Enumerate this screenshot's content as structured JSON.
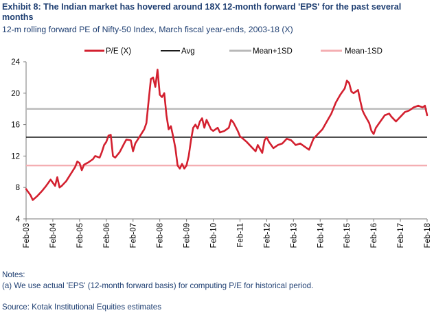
{
  "title": "Exhibit 8: The Indian market has hovered around 18X 12-month forward 'EPS' for the past several months",
  "subtitle": "12-m rolling forward PE of Nifty-50 Index, March fiscal year-ends, 2003-18 (X)",
  "notes_heading": "Notes:",
  "note_a": "(a) We use actual 'EPS' (12-month forward basis) for computing P/E for historical period.",
  "source": "Source: Kotak Institutional Equities estimates",
  "colors": {
    "pe": "#d3202f",
    "avg": "#1a1a1a",
    "mean_plus": "#b8b8b8",
    "mean_minus": "#f4aeb2",
    "text": "#1f3f72"
  },
  "chart_data": {
    "type": "line",
    "title": "12-m rolling forward PE of Nifty-50 Index, March fiscal year-ends, 2003-18 (X)",
    "legend_position": "top",
    "ylim": [
      4,
      24
    ],
    "y_ticks": [
      "4",
      "8",
      "12",
      "16",
      "20",
      "24"
    ],
    "x_ticks": [
      "Feb-03",
      "Feb-04",
      "Feb-05",
      "Feb-06",
      "Feb-07",
      "Feb-08",
      "Feb-09",
      "Feb-10",
      "Feb-11",
      "Feb-12",
      "Feb-13",
      "Feb-14",
      "Feb-15",
      "Feb-16",
      "Feb-17",
      "Feb-18"
    ],
    "x_range": [
      "2003-02",
      "2018-02"
    ],
    "grid": false,
    "series": [
      {
        "name": "P/E (X)",
        "points": [
          [
            "2003-02",
            7.8
          ],
          [
            "2003-04",
            7.0
          ],
          [
            "2003-05",
            6.4
          ],
          [
            "2003-07",
            6.9
          ],
          [
            "2003-09",
            7.5
          ],
          [
            "2003-11",
            8.2
          ],
          [
            "2004-01",
            9.0
          ],
          [
            "2004-02",
            8.6
          ],
          [
            "2004-03",
            8.2
          ],
          [
            "2004-04",
            9.3
          ],
          [
            "2004-05",
            8.0
          ],
          [
            "2004-06",
            8.2
          ],
          [
            "2004-08",
            8.8
          ],
          [
            "2004-10",
            9.7
          ],
          [
            "2004-12",
            10.6
          ],
          [
            "2005-01",
            11.3
          ],
          [
            "2005-02",
            11.1
          ],
          [
            "2005-03",
            10.2
          ],
          [
            "2005-04",
            10.9
          ],
          [
            "2005-06",
            11.2
          ],
          [
            "2005-08",
            11.6
          ],
          [
            "2005-09",
            12.0
          ],
          [
            "2005-11",
            11.8
          ],
          [
            "2005-12",
            12.5
          ],
          [
            "2006-01",
            13.4
          ],
          [
            "2006-02",
            13.8
          ],
          [
            "2006-03",
            14.6
          ],
          [
            "2006-04",
            14.7
          ],
          [
            "2006-05",
            12.0
          ],
          [
            "2006-06",
            11.8
          ],
          [
            "2006-08",
            12.5
          ],
          [
            "2006-10",
            13.6
          ],
          [
            "2006-11",
            14.1
          ],
          [
            "2007-01",
            14.0
          ],
          [
            "2007-02",
            12.6
          ],
          [
            "2007-03",
            13.6
          ],
          [
            "2007-05",
            14.5
          ],
          [
            "2007-07",
            15.4
          ],
          [
            "2007-08",
            16.2
          ],
          [
            "2007-09",
            19.0
          ],
          [
            "2007-10",
            21.8
          ],
          [
            "2007-11",
            22.0
          ],
          [
            "2007-12",
            20.8
          ],
          [
            "2008-01",
            23.0
          ],
          [
            "2008-02",
            19.8
          ],
          [
            "2008-03",
            19.5
          ],
          [
            "2008-04",
            20.0
          ],
          [
            "2008-05",
            17.2
          ],
          [
            "2008-06",
            15.4
          ],
          [
            "2008-07",
            15.8
          ],
          [
            "2008-08",
            14.5
          ],
          [
            "2008-09",
            13.0
          ],
          [
            "2008-10",
            10.8
          ],
          [
            "2008-11",
            10.4
          ],
          [
            "2008-12",
            11.0
          ],
          [
            "2009-01",
            10.4
          ],
          [
            "2009-02",
            10.8
          ],
          [
            "2009-03",
            12.0
          ],
          [
            "2009-04",
            14.0
          ],
          [
            "2009-05",
            15.6
          ],
          [
            "2009-06",
            16.0
          ],
          [
            "2009-07",
            15.5
          ],
          [
            "2009-08",
            16.4
          ],
          [
            "2009-09",
            16.8
          ],
          [
            "2009-10",
            15.6
          ],
          [
            "2009-11",
            16.6
          ],
          [
            "2010-01",
            15.4
          ],
          [
            "2010-02",
            15.2
          ],
          [
            "2010-04",
            15.6
          ],
          [
            "2010-05",
            15.0
          ],
          [
            "2010-07",
            15.2
          ],
          [
            "2010-09",
            15.6
          ],
          [
            "2010-10",
            16.6
          ],
          [
            "2010-11",
            16.3
          ],
          [
            "2011-01",
            15.2
          ],
          [
            "2011-02",
            14.5
          ],
          [
            "2011-03",
            14.3
          ],
          [
            "2011-05",
            13.8
          ],
          [
            "2011-07",
            13.2
          ],
          [
            "2011-09",
            12.6
          ],
          [
            "2011-10",
            13.4
          ],
          [
            "2011-12",
            12.4
          ],
          [
            "2012-01",
            14.0
          ],
          [
            "2012-02",
            14.4
          ],
          [
            "2012-03",
            13.8
          ],
          [
            "2012-05",
            13.0
          ],
          [
            "2012-07",
            13.4
          ],
          [
            "2012-09",
            13.6
          ],
          [
            "2012-11",
            14.2
          ],
          [
            "2013-01",
            14.0
          ],
          [
            "2013-03",
            13.4
          ],
          [
            "2013-05",
            13.6
          ],
          [
            "2013-07",
            13.2
          ],
          [
            "2013-09",
            12.8
          ],
          [
            "2013-11",
            14.2
          ],
          [
            "2014-01",
            14.8
          ],
          [
            "2014-03",
            15.4
          ],
          [
            "2014-05",
            16.4
          ],
          [
            "2014-07",
            17.4
          ],
          [
            "2014-09",
            18.8
          ],
          [
            "2014-11",
            19.8
          ],
          [
            "2015-01",
            20.6
          ],
          [
            "2015-02",
            21.6
          ],
          [
            "2015-03",
            21.3
          ],
          [
            "2015-04",
            20.2
          ],
          [
            "2015-05",
            20.0
          ],
          [
            "2015-06",
            20.2
          ],
          [
            "2015-07",
            20.4
          ],
          [
            "2015-08",
            19.0
          ],
          [
            "2015-09",
            17.8
          ],
          [
            "2015-10",
            17.2
          ],
          [
            "2015-12",
            16.2
          ],
          [
            "2016-01",
            15.2
          ],
          [
            "2016-02",
            14.8
          ],
          [
            "2016-03",
            15.6
          ],
          [
            "2016-05",
            16.4
          ],
          [
            "2016-07",
            17.2
          ],
          [
            "2016-09",
            17.4
          ],
          [
            "2016-10",
            17.0
          ],
          [
            "2016-12",
            16.4
          ],
          [
            "2017-02",
            17.0
          ],
          [
            "2017-04",
            17.6
          ],
          [
            "2017-06",
            17.8
          ],
          [
            "2017-08",
            18.2
          ],
          [
            "2017-10",
            18.4
          ],
          [
            "2017-12",
            18.2
          ],
          [
            "2018-01",
            18.4
          ],
          [
            "2018-02",
            17.2
          ]
        ]
      },
      {
        "name": "Avg",
        "value": 14.4
      },
      {
        "name": "Mean+1SD",
        "value": 18.0
      },
      {
        "name": "Mean-1SD",
        "value": 10.8
      }
    ]
  }
}
